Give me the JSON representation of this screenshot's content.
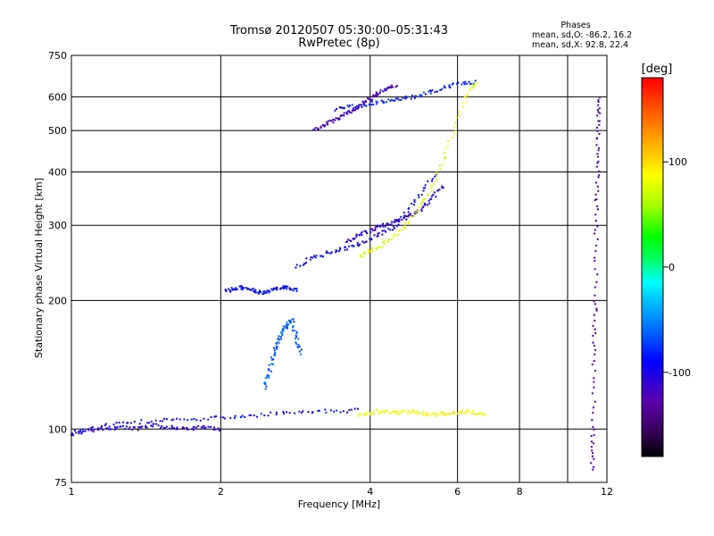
{
  "chart_data": {
    "type": "scatter",
    "title": "Tromsø 20120507 05:30:00–05:31:43",
    "subtitle": "RwPretec (8p)",
    "xlabel": "Frequency [MHz]",
    "ylabel": "Stationary phase Virtual Height [km]",
    "x_scale": "log",
    "y_scale": "log",
    "xlim": [
      1,
      12
    ],
    "ylim": [
      75,
      750
    ],
    "x_ticks": [
      1,
      2,
      4,
      6,
      8,
      10,
      12
    ],
    "x_tick_labels": [
      "1",
      "2",
      "4",
      "6",
      "8",
      "",
      "12"
    ],
    "y_ticks": [
      75,
      100,
      200,
      300,
      400,
      500,
      600,
      750
    ],
    "y_tick_labels": [
      "75",
      "100",
      "200",
      "300",
      "400",
      "500",
      "600",
      "750"
    ],
    "grid": true,
    "phase_header": "Phases",
    "phase_o": "mean, sd,O: -86.2, 16.2",
    "phase_x": "mean, sd,X:  92.8, 22.4",
    "colorbar": {
      "label": "[deg]",
      "ticks": [
        100,
        0,
        -100
      ],
      "tick_labels": [
        "100",
        "0",
        "-100"
      ],
      "range": [
        -180,
        180
      ],
      "colors": [
        "#000000",
        "#3a0060",
        "#5a00b0",
        "#0000ff",
        "#0064ff",
        "#00b4ff",
        "#00ffff",
        "#00ff64",
        "#00ff00",
        "#a0ff00",
        "#ffff00",
        "#ffb400",
        "#ff6400",
        "#ff0000"
      ]
    },
    "traces": [
      {
        "name": "",
        "phase": -110,
        "x_range": [
          1.0,
          2.0
        ],
        "y_values": [
          97,
          99,
          100,
          101,
          100,
          102,
          101,
          100,
          101,
          100
        ]
      },
      {
        "name": "",
        "phase": -100,
        "x_range": [
          1.0,
          3.8
        ],
        "y_values": [
          98,
          101,
          103,
          104,
          105,
          105,
          106,
          107,
          108,
          109,
          110,
          110,
          111
        ]
      },
      {
        "name": "",
        "phase": -95,
        "x_range": [
          2.05,
          2.85
        ],
        "y_values": [
          210,
          215,
          212,
          208,
          212,
          215,
          212
        ]
      },
      {
        "name": "",
        "phase": -100,
        "x_range": [
          2.85,
          5.4
        ],
        "y_values": [
          240,
          250,
          255,
          262,
          265,
          272,
          280,
          290,
          300,
          330,
          360,
          395
        ]
      },
      {
        "name": "",
        "phase": -110,
        "x_range": [
          3.6,
          5.6
        ],
        "y_values": [
          275,
          285,
          295,
          302,
          310,
          320,
          340,
          370
        ]
      },
      {
        "name": "",
        "phase": -90,
        "x_range": [
          3.4,
          6.5
        ],
        "y_values": [
          560,
          570,
          580,
          590,
          600,
          620,
          640,
          650
        ]
      },
      {
        "name": "",
        "phase": -120,
        "x_range": [
          3.1,
          4.5
        ],
        "y_values": [
          500,
          520,
          540,
          560,
          590,
          620,
          640
        ]
      },
      {
        "name": "",
        "phase": -70,
        "x_range": [
          2.45,
          2.9
        ],
        "y_values": [
          125,
          135,
          150,
          160,
          170,
          175,
          180,
          165,
          150
        ]
      },
      {
        "name": "",
        "phase": 90,
        "x_range": [
          3.8,
          6.6
        ],
        "y_values": [
          255,
          262,
          270,
          285,
          300,
          330,
          360,
          420,
          500,
          600,
          650
        ]
      },
      {
        "name": "",
        "phase": 95,
        "x_range": [
          3.8,
          6.8
        ],
        "y_values": [
          108,
          110,
          109,
          110,
          108,
          109,
          110,
          108
        ]
      },
      {
        "name": "",
        "phase": -130,
        "x_range": [
          11.2,
          11.6
        ],
        "y_values": [
          80,
          100,
          150,
          200,
          300,
          400,
          500,
          600
        ]
      }
    ]
  }
}
